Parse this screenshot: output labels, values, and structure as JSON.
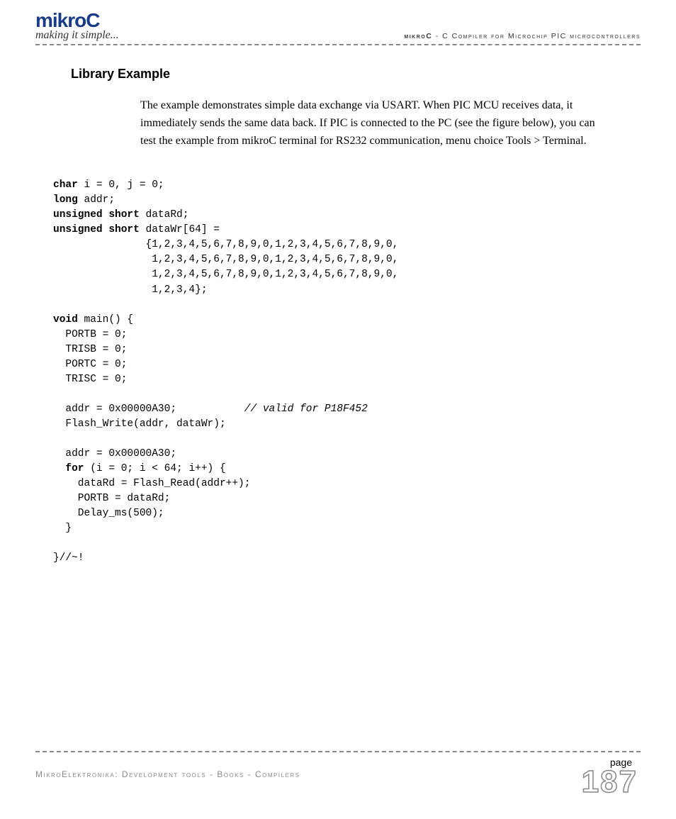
{
  "header": {
    "brand": "mikroC",
    "tagline": "making it simple...",
    "right_bold": "mikroC",
    "right_text": " - C Compiler for Microchip PIC microcontrollers"
  },
  "section": {
    "title": "Library Example",
    "body": "The example demonstrates simple data exchange via USART. When PIC MCU receives data, it immediately sends the same data back. If PIC is connected to the PC (see the figure below), you can test the example from mikroC terminal for RS232 communication, menu choice Tools > Terminal."
  },
  "code": {
    "language": "c",
    "keywords": [
      "char",
      "long",
      "unsigned",
      "short",
      "void",
      "for"
    ],
    "lines": [
      {
        "pre": "",
        "kw": "char",
        "post": " i = 0, j = 0;"
      },
      {
        "pre": "",
        "kw": "long",
        "post": " addr;"
      },
      {
        "pre": "",
        "kw": "unsigned short",
        "post": " dataRd;"
      },
      {
        "pre": "",
        "kw": "unsigned short",
        "post": " dataWr[64] ="
      },
      {
        "plain": "               {1,2,3,4,5,6,7,8,9,0,1,2,3,4,5,6,7,8,9,0,"
      },
      {
        "plain": "                1,2,3,4,5,6,7,8,9,0,1,2,3,4,5,6,7,8,9,0,"
      },
      {
        "plain": "                1,2,3,4,5,6,7,8,9,0,1,2,3,4,5,6,7,8,9,0,"
      },
      {
        "plain": "                1,2,3,4};"
      },
      {
        "plain": ""
      },
      {
        "pre": "",
        "kw": "void",
        "post": " main() {"
      },
      {
        "plain": "  PORTB = 0;"
      },
      {
        "plain": "  TRISB = 0;"
      },
      {
        "plain": "  PORTC = 0;"
      },
      {
        "plain": "  TRISC = 0;"
      },
      {
        "plain": ""
      },
      {
        "plain": "  addr = 0x00000A30;           ",
        "cm": "// valid for P18F452"
      },
      {
        "plain": "  Flash_Write(addr, dataWr);"
      },
      {
        "plain": ""
      },
      {
        "plain": "  addr = 0x00000A30;"
      },
      {
        "pre": "  ",
        "kw": "for",
        "post": " (i = 0; i < 64; i++) {"
      },
      {
        "plain": "    dataRd = Flash_Read(addr++);"
      },
      {
        "plain": "    PORTB = dataRd;"
      },
      {
        "plain": "    Delay_ms(500);"
      },
      {
        "plain": "  }"
      },
      {
        "plain": ""
      },
      {
        "plain": "}//~!"
      }
    ]
  },
  "footer": {
    "left": "MikroElektronika: Development tools - Books - Compilers",
    "page_label": "page",
    "page_number": "187"
  },
  "colors": {
    "brand_blue": "#1a3a8a",
    "dash_gray": "#888888",
    "footer_gray": "#888888",
    "text": "#000000",
    "background": "#ffffff"
  },
  "typography": {
    "brand_fontsize": 28,
    "section_title_fontsize": 18,
    "body_fontsize": 16,
    "code_fontsize": 14.5,
    "page_number_fontsize": 44
  }
}
